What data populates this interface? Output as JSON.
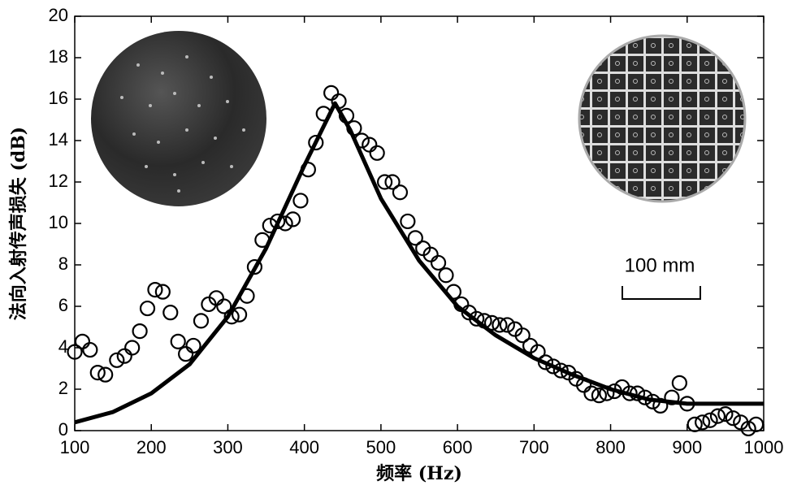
{
  "chart_data": {
    "type": "scatter",
    "x_label": "频率 (Hz)",
    "y_label": "法向入射传声损失 (dB)",
    "annotation": "100 mm",
    "xlim": [
      100,
      1000
    ],
    "xticks": [
      100,
      200,
      300,
      400,
      500,
      600,
      700,
      800,
      900,
      1000
    ],
    "ylim": [
      0,
      20
    ],
    "yticks": [
      0,
      2,
      4,
      6,
      8,
      10,
      12,
      14,
      16,
      18,
      20
    ],
    "series": [
      {
        "type": "scatter",
        "color": "#000000",
        "x": [
          100,
          110,
          120,
          130,
          140,
          155,
          165,
          175,
          185,
          195,
          205,
          215,
          225,
          235,
          245,
          255,
          265,
          275,
          285,
          295,
          305,
          315,
          325,
          335,
          345,
          355,
          365,
          375,
          385,
          395,
          405,
          415,
          425,
          435,
          445,
          455,
          465,
          475,
          485,
          495,
          505,
          515,
          525,
          535,
          545,
          555,
          565,
          575,
          585,
          595,
          605,
          615,
          625,
          635,
          645,
          655,
          665,
          675,
          685,
          695,
          705,
          715,
          725,
          735,
          745,
          755,
          765,
          775,
          785,
          795,
          805,
          815,
          825,
          835,
          845,
          855,
          865,
          880,
          890,
          900,
          910,
          920,
          930,
          940,
          950,
          960,
          970,
          980,
          990
        ],
        "values": [
          3.8,
          4.3,
          3.9,
          2.8,
          2.7,
          3.4,
          3.6,
          4.0,
          4.8,
          5.9,
          6.8,
          6.7,
          5.7,
          4.3,
          3.7,
          4.1,
          5.3,
          6.1,
          6.4,
          6.0,
          5.5,
          5.6,
          6.5,
          7.9,
          9.2,
          9.9,
          10.1,
          10.0,
          10.2,
          11.1,
          12.6,
          13.9,
          15.3,
          16.3,
          15.9,
          15.2,
          14.6,
          14.0,
          13.8,
          13.4,
          12.0,
          12.0,
          11.5,
          10.1,
          9.3,
          8.8,
          8.5,
          8.1,
          7.5,
          6.7,
          6.1,
          5.7,
          5.4,
          5.3,
          5.2,
          5.1,
          5.1,
          4.9,
          4.6,
          4.1,
          3.8,
          3.3,
          3.1,
          2.9,
          2.8,
          2.5,
          2.2,
          1.8,
          1.7,
          1.8,
          1.9,
          2.1,
          1.8,
          1.8,
          1.6,
          1.4,
          1.2,
          1.6,
          2.3,
          1.3,
          0.3,
          0.4,
          0.5,
          0.7,
          0.8,
          0.6,
          0.4,
          0.1,
          0.3
        ]
      },
      {
        "type": "line",
        "color": "#000000",
        "x": [
          100,
          150,
          200,
          250,
          300,
          350,
          400,
          440,
          460,
          500,
          550,
          600,
          650,
          700,
          750,
          800,
          850,
          900,
          950,
          1000
        ],
        "values": [
          0.4,
          0.9,
          1.8,
          3.2,
          5.5,
          8.8,
          12.8,
          15.8,
          14.5,
          11.2,
          8.2,
          6.0,
          4.6,
          3.5,
          2.7,
          2.0,
          1.5,
          1.3,
          1.3,
          1.3
        ]
      }
    ]
  }
}
